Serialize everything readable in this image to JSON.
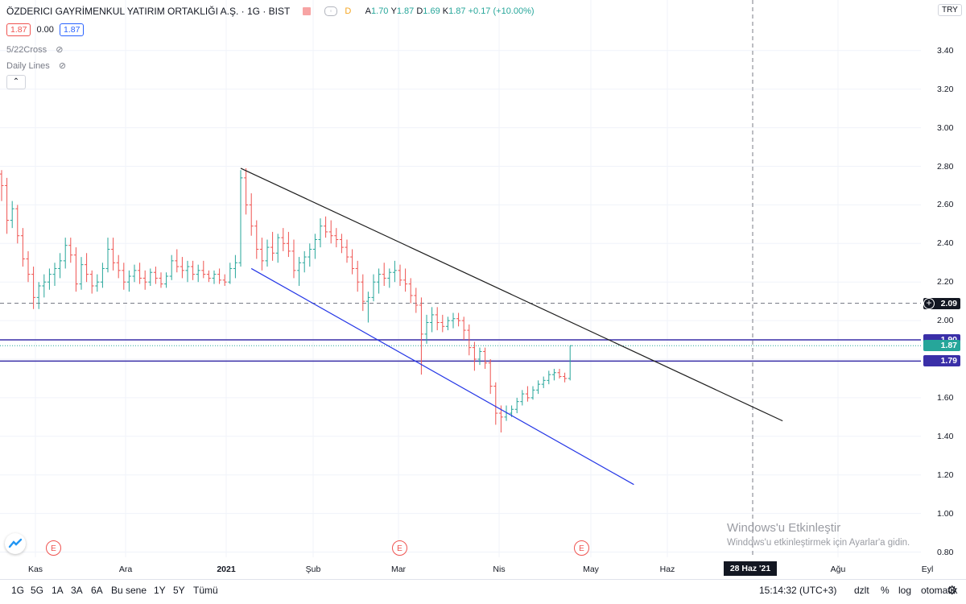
{
  "symbol": {
    "name": "ÖZDERICI GAYRİMENKUL YATIRIM ORTAKLIĞI A.Ş.",
    "interval": "1G",
    "exchange": "BIST",
    "status_badge": "D",
    "ohlc": {
      "o_label": "A",
      "o": "1.70",
      "h_label": "Y",
      "h": "1.87",
      "l_label": "D",
      "l": "1.69",
      "c_label": "K",
      "c": "1.87",
      "change": "+0.17 (+10.00%)"
    },
    "sell_price": "1.87",
    "spread": "0.00",
    "buy_price": "1.87"
  },
  "indicators": [
    {
      "name": "5/22Cross"
    },
    {
      "name": "Daily Lines"
    }
  ],
  "currency": "TRY",
  "colors": {
    "up": "#26a69a",
    "down": "#ef5350",
    "hline": "#3a2fa8",
    "trend_upper": "#1e1e1e",
    "trend_lower": "#2436e6"
  },
  "price_axis": [
    "3.40",
    "3.20",
    "3.00",
    "2.80",
    "2.60",
    "2.40",
    "2.20",
    "2.00",
    "1.80",
    "1.60",
    "1.40",
    "1.20",
    "1.00",
    "0.80"
  ],
  "price_labels": {
    "crosshair": "2.09",
    "hline_upper": "1.90",
    "last": "1.87",
    "hline_lower": "1.79"
  },
  "time_axis": [
    "Kas",
    "Ara",
    "2021",
    "Şub",
    "Mar",
    "Nis",
    "May",
    "Haz",
    "Ağu",
    "Eyl"
  ],
  "crosshair_date": "28 Haz '21",
  "earnings_marker": "E",
  "range_buttons": [
    "1G",
    "5G",
    "1A",
    "3A",
    "6A",
    "Bu sene",
    "1Y",
    "5Y",
    "Tümü"
  ],
  "toolbar_right": {
    "clock": "15:14:32 (UTC+3)",
    "adjust": "dzlt",
    "percent": "%",
    "log": "log",
    "auto": "otomatik"
  },
  "watermark": {
    "title": "Windows'u Etkinleştir",
    "subtitle": "Windows'u etkinleştirmek için Ayarlar'a gidin."
  },
  "chart_data": {
    "type": "ohlc",
    "series": [
      {
        "name": "",
        "bars": [
          [
            2.76,
            2.78,
            2.62,
            2.7
          ],
          [
            2.7,
            2.74,
            2.45,
            2.52
          ],
          [
            2.52,
            2.62,
            2.48,
            2.58
          ],
          [
            2.58,
            2.6,
            2.4,
            2.44
          ],
          [
            2.44,
            2.48,
            2.28,
            2.32
          ],
          [
            2.32,
            2.36,
            2.2,
            2.24
          ],
          [
            2.24,
            2.28,
            2.06,
            2.12
          ],
          [
            2.12,
            2.2,
            2.06,
            2.18
          ],
          [
            2.18,
            2.24,
            2.12,
            2.2
          ],
          [
            2.2,
            2.27,
            2.16,
            2.24
          ],
          [
            2.24,
            2.3,
            2.18,
            2.27
          ],
          [
            2.27,
            2.35,
            2.22,
            2.31
          ],
          [
            2.31,
            2.43,
            2.27,
            2.39
          ],
          [
            2.39,
            2.43,
            2.3,
            2.34
          ],
          [
            2.34,
            2.38,
            2.15,
            2.19
          ],
          [
            2.19,
            2.33,
            2.16,
            2.29
          ],
          [
            2.29,
            2.35,
            2.2,
            2.24
          ],
          [
            2.24,
            2.26,
            2.14,
            2.18
          ],
          [
            2.18,
            2.24,
            2.15,
            2.2
          ],
          [
            2.2,
            2.3,
            2.17,
            2.27
          ],
          [
            2.27,
            2.43,
            2.25,
            2.37
          ],
          [
            2.37,
            2.43,
            2.26,
            2.3
          ],
          [
            2.3,
            2.34,
            2.22,
            2.26
          ],
          [
            2.26,
            2.3,
            2.16,
            2.2
          ],
          [
            2.2,
            2.26,
            2.15,
            2.23
          ],
          [
            2.23,
            2.29,
            2.2,
            2.26
          ],
          [
            2.26,
            2.3,
            2.19,
            2.22
          ],
          [
            2.22,
            2.26,
            2.16,
            2.2
          ],
          [
            2.2,
            2.27,
            2.18,
            2.25
          ],
          [
            2.25,
            2.28,
            2.19,
            2.22
          ],
          [
            2.22,
            2.25,
            2.17,
            2.19
          ],
          [
            2.19,
            2.25,
            2.17,
            2.23
          ],
          [
            2.23,
            2.34,
            2.21,
            2.31
          ],
          [
            2.31,
            2.37,
            2.25,
            2.28
          ],
          [
            2.28,
            2.33,
            2.22,
            2.26
          ],
          [
            2.26,
            2.31,
            2.2,
            2.28
          ],
          [
            2.28,
            2.31,
            2.21,
            2.24
          ],
          [
            2.24,
            2.29,
            2.2,
            2.26
          ],
          [
            2.26,
            2.31,
            2.22,
            2.24
          ],
          [
            2.24,
            2.26,
            2.2,
            2.22
          ],
          [
            2.22,
            2.26,
            2.19,
            2.24
          ],
          [
            2.24,
            2.27,
            2.19,
            2.21
          ],
          [
            2.21,
            2.24,
            2.18,
            2.2
          ],
          [
            2.2,
            2.3,
            2.19,
            2.27
          ],
          [
            2.27,
            2.34,
            2.22,
            2.3
          ],
          [
            2.3,
            2.78,
            2.28,
            2.74
          ],
          [
            2.74,
            2.79,
            2.55,
            2.6
          ],
          [
            2.6,
            2.66,
            2.44,
            2.49
          ],
          [
            2.49,
            2.52,
            2.32,
            2.37
          ],
          [
            2.37,
            2.43,
            2.26,
            2.31
          ],
          [
            2.31,
            2.42,
            2.28,
            2.38
          ],
          [
            2.38,
            2.46,
            2.31,
            2.35
          ],
          [
            2.35,
            2.45,
            2.3,
            2.43
          ],
          [
            2.43,
            2.48,
            2.36,
            2.4
          ],
          [
            2.4,
            2.46,
            2.33,
            2.36
          ],
          [
            2.36,
            2.42,
            2.22,
            2.26
          ],
          [
            2.26,
            2.33,
            2.18,
            2.3
          ],
          [
            2.3,
            2.36,
            2.25,
            2.33
          ],
          [
            2.33,
            2.4,
            2.28,
            2.37
          ],
          [
            2.37,
            2.45,
            2.32,
            2.42
          ],
          [
            2.42,
            2.53,
            2.38,
            2.49
          ],
          [
            2.49,
            2.54,
            2.43,
            2.46
          ],
          [
            2.46,
            2.52,
            2.4,
            2.44
          ],
          [
            2.44,
            2.48,
            2.38,
            2.42
          ],
          [
            2.42,
            2.45,
            2.35,
            2.38
          ],
          [
            2.38,
            2.42,
            2.3,
            2.33
          ],
          [
            2.33,
            2.37,
            2.24,
            2.27
          ],
          [
            2.27,
            2.31,
            2.15,
            2.2
          ],
          [
            2.2,
            2.24,
            2.05,
            2.1
          ],
          [
            2.1,
            2.15,
            1.99,
            2.12
          ],
          [
            2.12,
            2.24,
            2.1,
            2.2
          ],
          [
            2.2,
            2.27,
            2.14,
            2.24
          ],
          [
            2.24,
            2.3,
            2.18,
            2.22
          ],
          [
            2.22,
            2.27,
            2.17,
            2.25
          ],
          [
            2.25,
            2.31,
            2.2,
            2.26
          ],
          [
            2.26,
            2.29,
            2.18,
            2.21
          ],
          [
            2.21,
            2.27,
            2.15,
            2.19
          ],
          [
            2.19,
            2.22,
            2.09,
            2.13
          ],
          [
            2.13,
            2.17,
            2.04,
            2.08
          ],
          [
            2.08,
            2.12,
            1.72,
            1.93
          ],
          [
            1.93,
            2.03,
            1.88,
            1.99
          ],
          [
            1.99,
            2.07,
            1.94,
            2.03
          ],
          [
            2.03,
            2.07,
            1.95,
            1.99
          ],
          [
            1.99,
            2.03,
            1.94,
            1.97
          ],
          [
            1.97,
            2.02,
            1.95,
            2.0
          ],
          [
            2.0,
            2.04,
            1.96,
            2.01
          ],
          [
            2.01,
            2.04,
            1.97,
            2.0
          ],
          [
            2.0,
            2.02,
            1.9,
            1.95
          ],
          [
            1.95,
            1.98,
            1.82,
            1.86
          ],
          [
            1.86,
            1.89,
            1.74,
            1.8
          ],
          [
            1.8,
            1.86,
            1.77,
            1.84
          ],
          [
            1.84,
            1.86,
            1.75,
            1.78
          ],
          [
            1.78,
            1.8,
            1.62,
            1.66
          ],
          [
            1.66,
            1.68,
            1.46,
            1.52
          ],
          [
            1.52,
            1.56,
            1.42,
            1.5
          ],
          [
            1.5,
            1.56,
            1.48,
            1.52
          ],
          [
            1.52,
            1.56,
            1.5,
            1.54
          ],
          [
            1.54,
            1.6,
            1.52,
            1.58
          ],
          [
            1.58,
            1.64,
            1.56,
            1.62
          ],
          [
            1.62,
            1.66,
            1.58,
            1.6
          ],
          [
            1.6,
            1.66,
            1.59,
            1.64
          ],
          [
            1.64,
            1.69,
            1.62,
            1.67
          ],
          [
            1.67,
            1.71,
            1.65,
            1.69
          ],
          [
            1.69,
            1.74,
            1.67,
            1.72
          ],
          [
            1.72,
            1.75,
            1.69,
            1.73
          ],
          [
            1.73,
            1.75,
            1.7,
            1.71
          ],
          [
            1.71,
            1.73,
            1.68,
            1.7
          ],
          [
            1.7,
            1.87,
            1.69,
            1.87
          ]
        ]
      }
    ],
    "hlines": [
      2.09,
      1.9,
      1.87,
      1.79
    ],
    "trendlines": [
      {
        "from": {
          "bar": 45,
          "price": 2.79
        },
        "to": {
          "bar": 147,
          "price": 1.48
        }
      },
      {
        "from": {
          "bar": 47,
          "price": 2.27
        },
        "to": {
          "bar": 119,
          "price": 1.15
        }
      }
    ],
    "ylim": [
      0.78,
      3.5
    ],
    "crosshair_bar": 135
  }
}
